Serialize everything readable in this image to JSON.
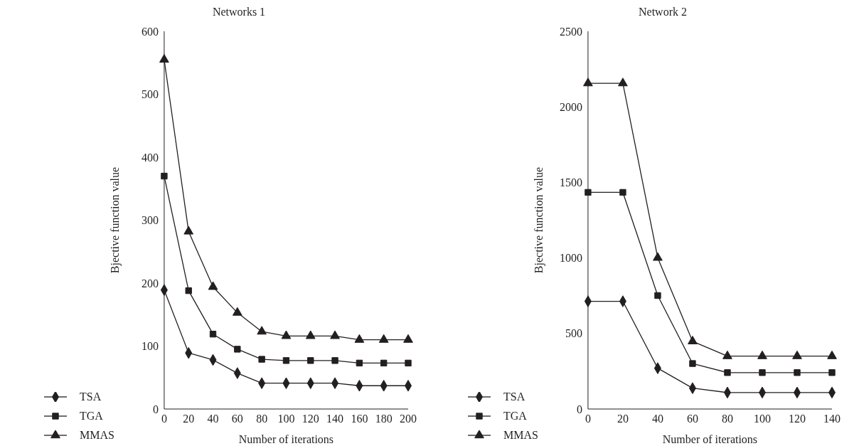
{
  "chart_data": [
    {
      "type": "line",
      "title": "Networks 1",
      "xlabel": "Number of iterations",
      "ylabel": "Bjective function value",
      "categories": [
        "0",
        "20",
        "40",
        "60",
        "80",
        "100",
        "120",
        "140",
        "160",
        "180",
        "200"
      ],
      "ylim": [
        0,
        600
      ],
      "yticks": [
        0,
        100,
        200,
        300,
        400,
        500,
        600
      ],
      "grid": false,
      "legend": "bottom left",
      "series": [
        {
          "name": "TSA",
          "color": "#231f20",
          "marker": "diamond",
          "values": [
            189,
            89,
            78,
            57,
            41,
            41,
            41,
            41,
            37,
            37,
            37
          ]
        },
        {
          "name": "TGA",
          "color": "#231f20",
          "marker": "square",
          "values": [
            370,
            188,
            119,
            95,
            79,
            77,
            77,
            77,
            73,
            73,
            73
          ]
        },
        {
          "name": "MMAS",
          "color": "#231f20",
          "marker": "triangle",
          "values": [
            555,
            282,
            194,
            153,
            123,
            116,
            116,
            116,
            110,
            110,
            110
          ]
        }
      ]
    },
    {
      "type": "line",
      "title": "Network 2",
      "xlabel": "Number of iterations",
      "ylabel": "Bjective function value",
      "categories": [
        "0",
        "20",
        "40",
        "60",
        "80",
        "100",
        "120",
        "140"
      ],
      "ylim": [
        0,
        2500
      ],
      "yticks": [
        0,
        500,
        1000,
        1500,
        2000,
        2500
      ],
      "grid": false,
      "legend": "bottom left",
      "series": [
        {
          "name": "TSA",
          "color": "#231f20",
          "marker": "diamond",
          "values": [
            713,
            713,
            270,
            138,
            109,
            109,
            109,
            109
          ]
        },
        {
          "name": "TGA",
          "color": "#231f20",
          "marker": "square",
          "values": [
            1434,
            1434,
            751,
            301,
            241,
            241,
            241,
            241
          ]
        },
        {
          "name": "MMAS",
          "color": "#231f20",
          "marker": "triangle",
          "values": [
            2156,
            2156,
            1001,
            448,
            350,
            350,
            350,
            350
          ]
        }
      ]
    }
  ]
}
